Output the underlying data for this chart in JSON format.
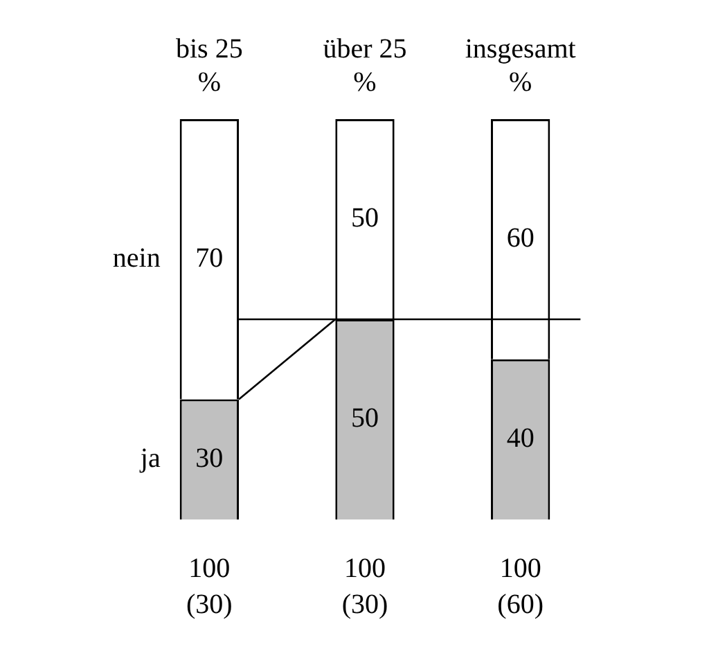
{
  "chart_data": {
    "type": "bar",
    "stacked": true,
    "categories": [
      "bis 25\n%",
      "über 25\n%",
      "insgesamt\n%"
    ],
    "series": [
      {
        "name": "ja",
        "color": "#c0c0c0",
        "values": [
          30,
          50,
          40
        ]
      },
      {
        "name": "nein",
        "color": "#ffffff",
        "values": [
          70,
          50,
          60
        ]
      }
    ],
    "data_labels": true,
    "totals": [
      "100\n(30)",
      "100\n(30)",
      "100\n(60)"
    ],
    "ref_lines": [
      {
        "axis": "y",
        "value": 50,
        "color": "#000000"
      }
    ],
    "tick_labels": "x",
    "legend": false,
    "grid": false
  }
}
